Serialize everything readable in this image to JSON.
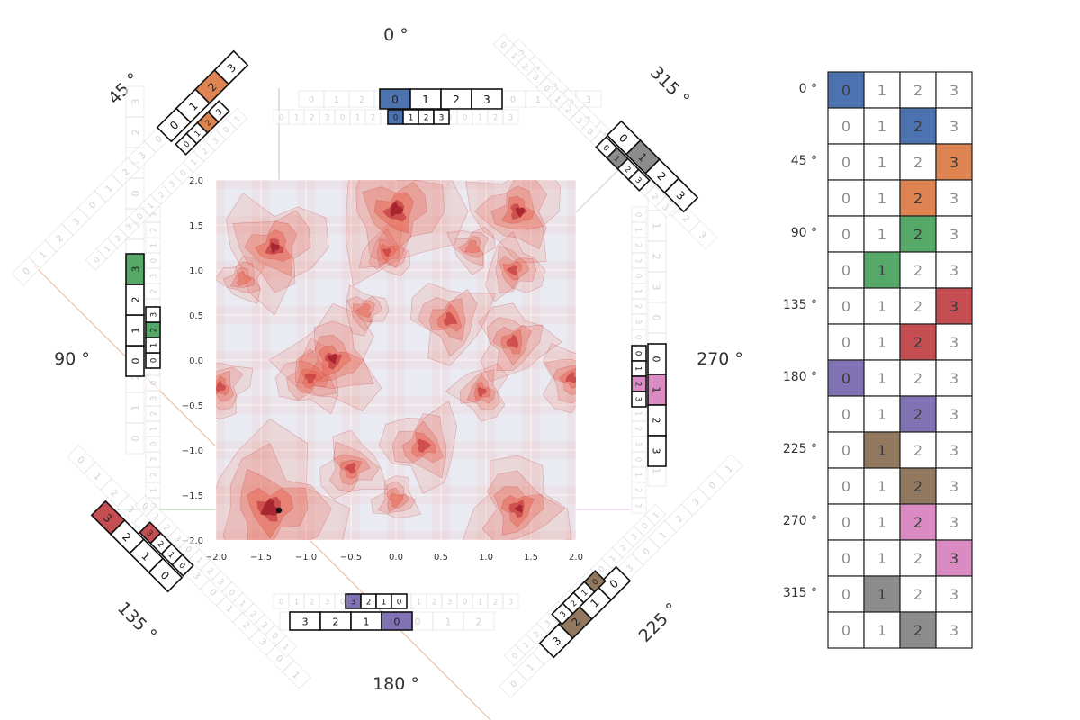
{
  "angle_labels": {
    "top": "0 °",
    "top_left": "45 °",
    "left": "90 °",
    "bottom_left": "135 °",
    "bottom": "180 °",
    "bottom_right": "225 °",
    "right": "270 °",
    "top_right": "315 °"
  },
  "contour_plot": {
    "x_ticks": [
      "−2.0",
      "−1.5",
      "−1.0",
      "−0.5",
      "0.0",
      "0.5",
      "1.0",
      "1.5",
      "2.0"
    ],
    "y_ticks": [
      "2.0",
      "1.5",
      "1.0",
      "0.5",
      "0.0",
      "−0.5",
      "−1.0",
      "−1.5",
      "−2.0"
    ],
    "marker": {
      "x": -1.3,
      "y": -1.67
    }
  },
  "legend_table": {
    "row_labels": [
      "0 °",
      "",
      "45 °",
      "",
      "90 °",
      "",
      "135 °",
      "",
      "180 °",
      "",
      "225 °",
      "",
      "270 °",
      "",
      "315 °",
      ""
    ],
    "columns": [
      "0",
      "1",
      "2",
      "3"
    ],
    "highlight": [
      0,
      2,
      3,
      2,
      2,
      1,
      3,
      2,
      0,
      2,
      1,
      2,
      2,
      3,
      1,
      2
    ],
    "colors": [
      "#4c72b0",
      "#4c72b0",
      "#dd8452",
      "#dd8452",
      "#55a868",
      "#55a868",
      "#c44e52",
      "#c44e52",
      "#8172b3",
      "#8172b3",
      "#937860",
      "#937860",
      "#da8bc3",
      "#da8bc3",
      "#8c8c8c",
      "#8c8c8c"
    ]
  },
  "strip_cells": [
    "0",
    "1",
    "2",
    "3"
  ],
  "palette": {
    "blue": "#4c72b0",
    "orange": "#dd8452",
    "green": "#55a868",
    "red": "#c44e52",
    "purple": "#8172b3",
    "brown": "#937860",
    "pink": "#da8bc3",
    "gray": "#8c8c8c",
    "plot_bg": "#eaeaf2",
    "contour": "#e8604c"
  }
}
